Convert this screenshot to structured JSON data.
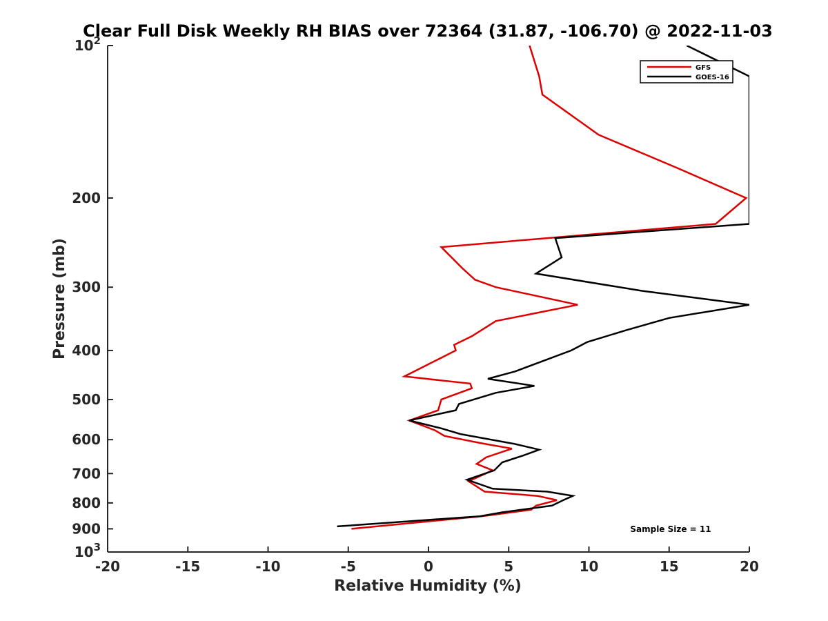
{
  "chart_data": {
    "type": "line",
    "title": "Clear Full Disk Weekly RH BIAS over 72364 (31.87, -106.70) @ 2022-11-03",
    "xlabel": "Relative Humidity (%)",
    "ylabel": "Pressure (mb)",
    "xlim": [
      -20,
      20
    ],
    "ylim": [
      100,
      1000
    ],
    "y_scale": "log",
    "y_reversed": true,
    "x_ticks": [
      "-20",
      "-15",
      "-10",
      "-5",
      "0",
      "5",
      "10",
      "15",
      "20"
    ],
    "y_ticks": [
      {
        "value": 100,
        "base": "10",
        "exp": "2"
      },
      {
        "value": 200,
        "label": "200"
      },
      {
        "value": 300,
        "label": "300"
      },
      {
        "value": 400,
        "label": "400"
      },
      {
        "value": 500,
        "label": "500"
      },
      {
        "value": 600,
        "label": "600"
      },
      {
        "value": 700,
        "label": "700"
      },
      {
        "value": 800,
        "label": "800"
      },
      {
        "value": 900,
        "label": "900"
      },
      {
        "value": 1000,
        "base": "10",
        "exp": "3"
      }
    ],
    "legend_position": "top-right",
    "grid": false,
    "series": [
      {
        "name": "GFS",
        "color": "#dd0000",
        "points": [
          [
            6.3,
            100
          ],
          [
            6.9,
            115
          ],
          [
            7.1,
            125
          ],
          [
            10.6,
            150
          ],
          [
            15.6,
            175
          ],
          [
            19.8,
            200
          ],
          [
            17.9,
            225
          ],
          [
            0.8,
            250
          ],
          [
            2.1,
            275
          ],
          [
            2.9,
            290
          ],
          [
            4.2,
            300
          ],
          [
            9.3,
            325
          ],
          [
            4.2,
            350
          ],
          [
            2.7,
            375
          ],
          [
            1.6,
            390
          ],
          [
            1.7,
            400
          ],
          [
            -1.5,
            450
          ],
          [
            2.6,
            465
          ],
          [
            2.7,
            475
          ],
          [
            0.8,
            500
          ],
          [
            0.6,
            525
          ],
          [
            -1.2,
            550
          ],
          [
            0.4,
            575
          ],
          [
            1.0,
            590
          ],
          [
            3.3,
            610
          ],
          [
            5.2,
            625
          ],
          [
            3.6,
            650
          ],
          [
            3.0,
            670
          ],
          [
            4.0,
            690
          ],
          [
            2.5,
            725
          ],
          [
            3.5,
            760
          ],
          [
            6.8,
            775
          ],
          [
            8.0,
            790
          ],
          [
            6.7,
            810
          ],
          [
            6.4,
            825
          ],
          [
            3.3,
            850
          ],
          [
            -4.8,
            900
          ]
        ]
      },
      {
        "name": "GOES-16",
        "color": "#000000",
        "points": [
          [
            16.1,
            100
          ],
          [
            20.0,
            115
          ],
          [
            20.0,
            225
          ],
          [
            7.9,
            240
          ],
          [
            8.3,
            262
          ],
          [
            6.7,
            282
          ],
          [
            13.3,
            305
          ],
          [
            20.0,
            325
          ],
          [
            15.0,
            345
          ],
          [
            12.3,
            365
          ],
          [
            9.9,
            385
          ],
          [
            8.9,
            400
          ],
          [
            5.4,
            440
          ],
          [
            3.7,
            455
          ],
          [
            6.6,
            470
          ],
          [
            4.2,
            485
          ],
          [
            1.9,
            510
          ],
          [
            1.7,
            525
          ],
          [
            -1.2,
            550
          ],
          [
            0.8,
            570
          ],
          [
            2.0,
            585
          ],
          [
            5.4,
            612
          ],
          [
            6.9,
            628
          ],
          [
            5.9,
            645
          ],
          [
            4.6,
            665
          ],
          [
            4.1,
            690
          ],
          [
            2.4,
            720
          ],
          [
            4.0,
            750
          ],
          [
            7.4,
            760
          ],
          [
            9.0,
            775
          ],
          [
            8.4,
            790
          ],
          [
            7.7,
            810
          ],
          [
            4.6,
            835
          ],
          [
            3.2,
            850
          ],
          [
            -5.7,
            890
          ]
        ]
      }
    ],
    "annotations": [
      "Sample Size = 11"
    ]
  }
}
